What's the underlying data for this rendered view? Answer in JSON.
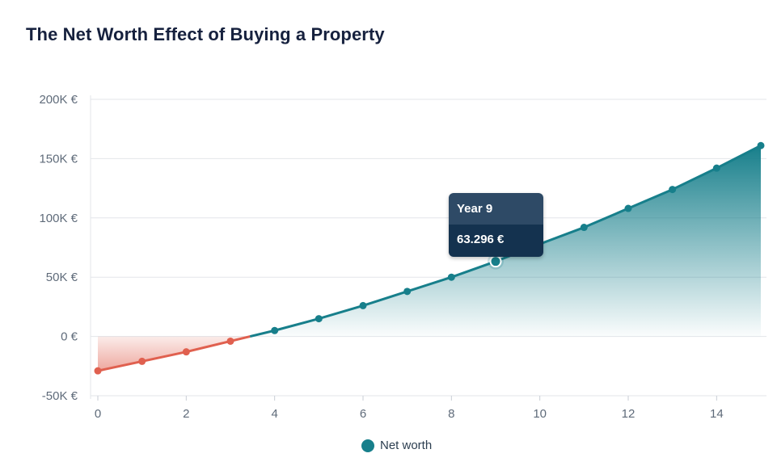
{
  "title": "The Net Worth Effect of Buying a Property",
  "colors": {
    "positive": "#177f8b",
    "negative": "#e0604f",
    "title": "#16213e",
    "tooltip_header": "#2e4a66",
    "tooltip_body": "#14324f"
  },
  "legend": {
    "label": "Net worth",
    "icon": "circle-marker"
  },
  "tooltip": {
    "header": "Year 9",
    "value": "63.296 €"
  },
  "chart_data": {
    "type": "area",
    "title": "The Net Worth Effect of Buying a Property",
    "xlabel": "",
    "ylabel": "",
    "xlim": [
      0,
      15
    ],
    "ylim": [
      -50000,
      200000
    ],
    "grid": true,
    "legend_position": "bottom",
    "x_ticks": [
      0,
      2,
      4,
      6,
      8,
      10,
      12,
      14
    ],
    "y_ticks": [
      -50000,
      0,
      50000,
      100000,
      150000,
      200000
    ],
    "x_tick_labels": [
      "0",
      "2",
      "4",
      "6",
      "8",
      "10",
      "12",
      "14"
    ],
    "y_tick_labels": [
      "-50K €",
      "0 €",
      "50K €",
      "100K €",
      "150K €",
      "200K €"
    ],
    "x": [
      0,
      1,
      2,
      3,
      4,
      5,
      6,
      7,
      8,
      9,
      10,
      11,
      12,
      13,
      14,
      15
    ],
    "series": [
      {
        "name": "Net worth",
        "values": [
          -29000,
          -21000,
          -13000,
          -4000,
          5000,
          15000,
          26000,
          38000,
          50000,
          63296,
          78000,
          92000,
          108000,
          124000,
          142000,
          161000
        ]
      }
    ],
    "highlight": {
      "x": 9,
      "value": 63296
    }
  }
}
